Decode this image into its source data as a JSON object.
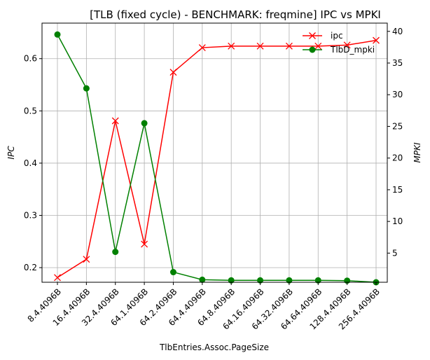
{
  "chart_data": {
    "type": "line",
    "title": "[TLB (fixed cycle) - BENCHMARK: freqmine]  IPC vs MPKI",
    "xlabel": "TlbEntries.Assoc.PageSize",
    "ylabel_left": "IPC",
    "ylabel_right": "MPKI",
    "categories": [
      "8.4.4096B",
      "16.4.4096B",
      "32.4.4096B",
      "64.1.4096B",
      "64.2.4096B",
      "64.4.4096B",
      "64.8.4096B",
      "64.16.4096B",
      "64.32.4096B",
      "64.64.4096B",
      "128.4.4096B",
      "256.4.4096B"
    ],
    "grid": true,
    "legend_position": "top-right",
    "ylim_left": [
      0.172,
      0.668
    ],
    "ylim_right": [
      0.4,
      41.3
    ],
    "yticks_left": [
      0.2,
      0.3,
      0.4,
      0.5,
      0.6
    ],
    "yticks_right": [
      5,
      10,
      15,
      20,
      25,
      30,
      35,
      40
    ],
    "series": [
      {
        "name": "ipc",
        "axis": "left",
        "color": "#ff0000",
        "marker": "x",
        "values": [
          0.181,
          0.216,
          0.481,
          0.245,
          0.574,
          0.621,
          0.624,
          0.624,
          0.624,
          0.624,
          0.626,
          0.635
        ]
      },
      {
        "name": "TlbD_mpki",
        "axis": "right",
        "color": "#008000",
        "marker": "o",
        "values": [
          39.5,
          31.0,
          5.2,
          25.5,
          2.0,
          0.8,
          0.7,
          0.7,
          0.7,
          0.7,
          0.65,
          0.4
        ]
      }
    ]
  }
}
